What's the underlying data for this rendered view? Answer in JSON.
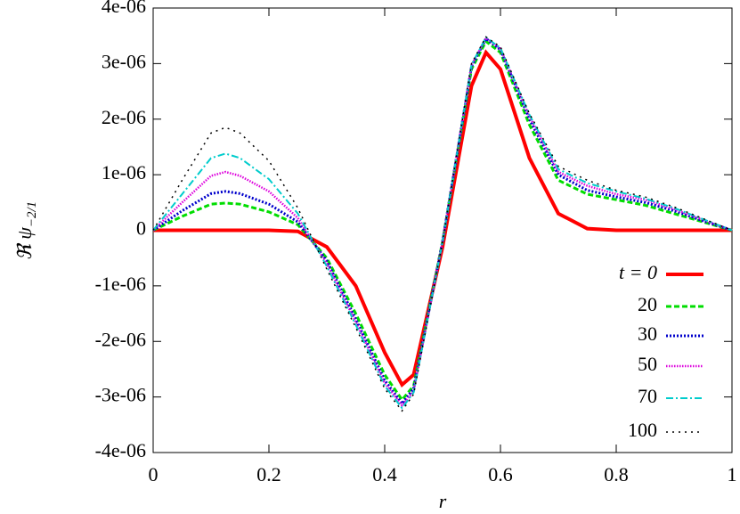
{
  "chart_data": {
    "type": "line",
    "xlabel": "r",
    "ylabel": "ℜ ψ",
    "ylabel_sub": "−2/1",
    "x": [
      0,
      0.05,
      0.1,
      0.125,
      0.15,
      0.2,
      0.25,
      0.3,
      0.35,
      0.4,
      0.43,
      0.45,
      0.5,
      0.55,
      0.575,
      0.6,
      0.65,
      0.7,
      0.75,
      0.8,
      0.85,
      0.9,
      0.95,
      1
    ],
    "xlim": [
      0,
      1
    ],
    "xticks": [
      0,
      0.2,
      0.4,
      0.6,
      0.8,
      1
    ],
    "ylim": [
      -4e-06,
      4e-06
    ],
    "yticks": [
      {
        "value": -4e-06,
        "label": "-4e-06"
      },
      {
        "value": -3e-06,
        "label": "-3e-06"
      },
      {
        "value": -2e-06,
        "label": "-2e-06"
      },
      {
        "value": -1e-06,
        "label": "-1e-06"
      },
      0,
      {
        "value": 1e-06,
        "label": "1e-06"
      },
      {
        "value": 2e-06,
        "label": "2e-06"
      },
      {
        "value": 3e-06,
        "label": "3e-06"
      },
      {
        "value": 4e-06,
        "label": "4e-06"
      }
    ],
    "legend": "lower right",
    "series": [
      {
        "name": "t = 0",
        "color": "#ff0000",
        "values": [
          0,
          0,
          0,
          0,
          0,
          0,
          -2e-08,
          -3e-07,
          -1e-06,
          -2.2e-06,
          -2.78e-06,
          -2.6e-06,
          -3e-07,
          2.6e-06,
          3.2e-06,
          2.9e-06,
          1.3e-06,
          3e-07,
          3e-08,
          0,
          0,
          0,
          0,
          0
        ]
      },
      {
        "name": "20",
        "color": "#00dd00",
        "values": [
          0,
          2.5e-07,
          4.7e-07,
          4.9e-07,
          4.7e-07,
          3.3e-07,
          1e-07,
          -5e-07,
          -1.5e-06,
          -2.6e-06,
          -3.05e-06,
          -2.8e-06,
          -2e-07,
          2.9e-06,
          3.4e-06,
          3.2e-06,
          1.9e-06,
          9e-07,
          6.5e-07,
          5.5e-07,
          4.5e-07,
          3e-07,
          1.5e-07,
          0
        ]
      },
      {
        "name": "30",
        "color": "#0000cc",
        "values": [
          0,
          3.5e-07,
          6.6e-07,
          7e-07,
          6.6e-07,
          4.7e-07,
          1.5e-07,
          -5.5e-07,
          -1.6e-06,
          -2.7e-06,
          -3.12e-06,
          -2.85e-06,
          -2e-07,
          2.95e-06,
          3.45e-06,
          3.25e-06,
          2e-06,
          1e-06,
          7.2e-07,
          6e-07,
          5e-07,
          3.5e-07,
          1.7e-07,
          0
        ]
      },
      {
        "name": "50",
        "color": "#dd00dd",
        "values": [
          0,
          5e-07,
          9.8e-07,
          1.05e-06,
          9.8e-07,
          7e-07,
          2.2e-07,
          -6e-07,
          -1.65e-06,
          -2.75e-06,
          -3.15e-06,
          -2.9e-06,
          -2e-07,
          2.97e-06,
          3.46e-06,
          3.27e-06,
          2.05e-06,
          1.05e-06,
          8e-07,
          6.5e-07,
          5.5e-07,
          3.8e-07,
          1.9e-07,
          0
        ]
      },
      {
        "name": "70",
        "color": "#00cccc",
        "values": [
          0,
          6.5e-07,
          1.3e-06,
          1.38e-06,
          1.3e-06,
          9.2e-07,
          3e-07,
          -6.5e-07,
          -1.7e-06,
          -2.8e-06,
          -3.2e-06,
          -2.92e-06,
          -2e-07,
          2.98e-06,
          3.47e-06,
          3.28e-06,
          2.08e-06,
          1.1e-06,
          8.5e-07,
          7e-07,
          5.7e-07,
          4e-07,
          2e-07,
          0
        ]
      },
      {
        "name": "100",
        "color": "#000000",
        "values": [
          0,
          9e-07,
          1.75e-06,
          1.85e-06,
          1.75e-06,
          1.25e-06,
          4e-07,
          -7e-07,
          -1.75e-06,
          -2.85e-06,
          -3.25e-06,
          -2.95e-06,
          -2e-07,
          3e-06,
          3.48e-06,
          3.3e-06,
          2.1e-06,
          1.15e-06,
          9e-07,
          7.2e-07,
          6e-07,
          4.2e-07,
          2.1e-07,
          0
        ]
      }
    ]
  }
}
